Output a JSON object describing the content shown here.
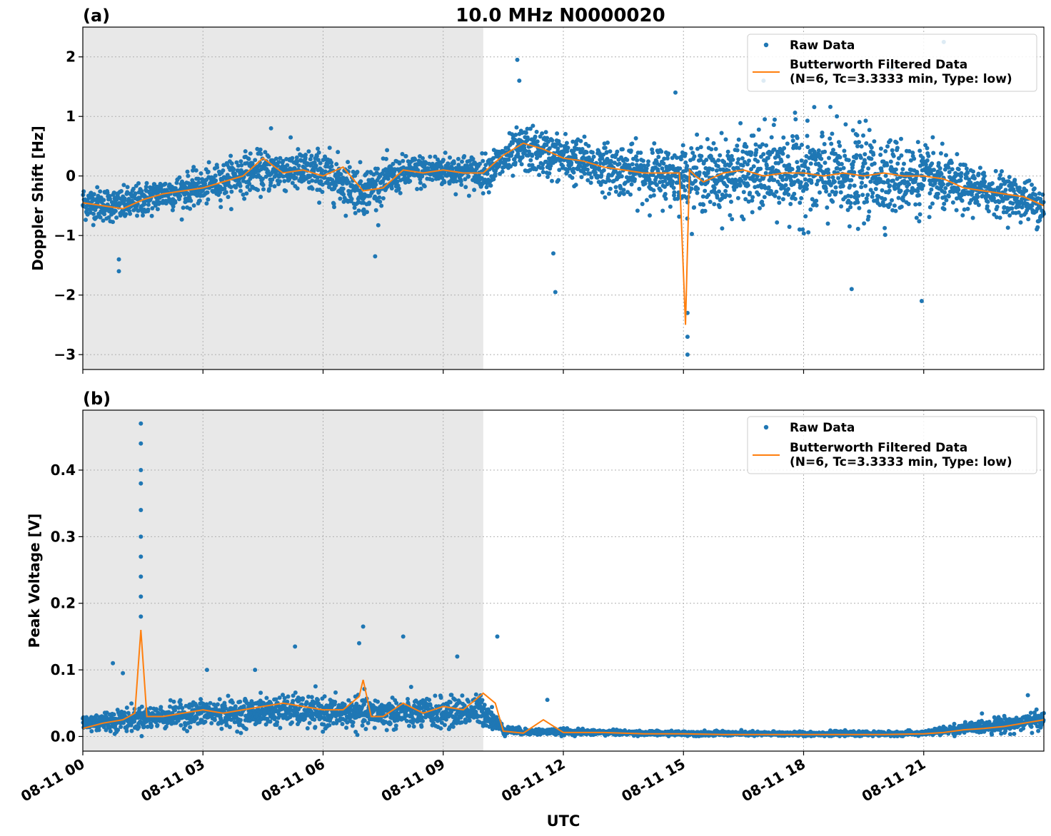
{
  "figure": {
    "title": "10.0 MHz N0000020",
    "xlabel": "UTC",
    "xticks": [
      "08-11 00",
      "08-11 03",
      "08-11 06",
      "08-11 09",
      "08-11 12",
      "08-11 15",
      "08-11 18",
      "08-11 21"
    ],
    "night_shade_hours": [
      0,
      10
    ],
    "colors": {
      "raw": "#1f77b4",
      "filtered": "#ff7f0e",
      "shade": "#e8e8e8",
      "grid": "#b0b0b0"
    }
  },
  "legend": {
    "raw_label": "Raw Data",
    "filtered_label_line1": "Butterworth Filtered Data",
    "filtered_label_line2": "(N=6, Tc=3.3333 min, Type: low)"
  },
  "chart_data": [
    {
      "type": "scatter",
      "panel": "(a)",
      "ylabel": "Doppler Shift [Hz]",
      "xlim_hours": [
        0,
        24
      ],
      "ylim": [
        -3.25,
        2.5
      ],
      "yticks": [
        2,
        1,
        0,
        -1,
        -2,
        -3
      ],
      "ytick_labels": [
        "2",
        "1",
        "0",
        "−1",
        "−2",
        "−3"
      ],
      "grid": true,
      "legend_position": "top-right",
      "series": [
        {
          "name": "Raw Data",
          "style": "points",
          "envelope": [
            {
              "x": 0.0,
              "center": -0.45,
              "spread": 0.25
            },
            {
              "x": 1.0,
              "center": -0.5,
              "spread": 0.25
            },
            {
              "x": 2.0,
              "center": -0.3,
              "spread": 0.25
            },
            {
              "x": 3.0,
              "center": -0.2,
              "spread": 0.25
            },
            {
              "x": 4.0,
              "center": 0.05,
              "spread": 0.3
            },
            {
              "x": 5.0,
              "center": 0.1,
              "spread": 0.3
            },
            {
              "x": 6.0,
              "center": 0.05,
              "spread": 0.35
            },
            {
              "x": 7.0,
              "center": -0.25,
              "spread": 0.35
            },
            {
              "x": 8.0,
              "center": 0.05,
              "spread": 0.25
            },
            {
              "x": 9.0,
              "center": 0.1,
              "spread": 0.25
            },
            {
              "x": 10.0,
              "center": 0.05,
              "spread": 0.25
            },
            {
              "x": 11.0,
              "center": 0.45,
              "spread": 0.35
            },
            {
              "x": 12.0,
              "center": 0.3,
              "spread": 0.35
            },
            {
              "x": 13.0,
              "center": 0.15,
              "spread": 0.35
            },
            {
              "x": 14.0,
              "center": 0.05,
              "spread": 0.4
            },
            {
              "x": 15.0,
              "center": 0.0,
              "spread": 0.45
            },
            {
              "x": 16.0,
              "center": 0.0,
              "spread": 0.55
            },
            {
              "x": 17.0,
              "center": 0.05,
              "spread": 0.6
            },
            {
              "x": 18.0,
              "center": 0.05,
              "spread": 0.7
            },
            {
              "x": 19.0,
              "center": 0.0,
              "spread": 0.7
            },
            {
              "x": 20.0,
              "center": 0.0,
              "spread": 0.6
            },
            {
              "x": 21.0,
              "center": -0.05,
              "spread": 0.5
            },
            {
              "x": 22.0,
              "center": -0.2,
              "spread": 0.35
            },
            {
              "x": 23.0,
              "center": -0.3,
              "spread": 0.3
            },
            {
              "x": 24.0,
              "center": -0.5,
              "spread": 0.3
            }
          ],
          "outliers": [
            {
              "x": 0.9,
              "y": -1.6
            },
            {
              "x": 0.9,
              "y": -1.4
            },
            {
              "x": 4.7,
              "y": 0.8
            },
            {
              "x": 7.3,
              "y": -1.35
            },
            {
              "x": 10.85,
              "y": 1.95
            },
            {
              "x": 10.9,
              "y": 1.6
            },
            {
              "x": 11.8,
              "y": -1.95
            },
            {
              "x": 11.75,
              "y": -1.3
            },
            {
              "x": 15.1,
              "y": -3.0
            },
            {
              "x": 15.1,
              "y": -2.7
            },
            {
              "x": 15.1,
              "y": -2.3
            },
            {
              "x": 19.2,
              "y": -1.9
            },
            {
              "x": 20.95,
              "y": -2.1
            },
            {
              "x": 21.5,
              "y": 2.25
            },
            {
              "x": 18.7,
              "y": 1.9
            },
            {
              "x": 14.8,
              "y": 1.4
            },
            {
              "x": 20.2,
              "y": 1.8
            },
            {
              "x": 17.0,
              "y": 1.6
            }
          ]
        },
        {
          "name": "Butterworth Filtered Data\n(N=6, Tc=3.3333 min, Type: low)",
          "style": "line",
          "x": [
            0,
            0.5,
            1.0,
            1.5,
            2.0,
            2.5,
            3.0,
            3.5,
            4.0,
            4.5,
            5.0,
            5.5,
            6.0,
            6.5,
            7.0,
            7.5,
            8.0,
            8.5,
            9.0,
            9.5,
            10.0,
            10.5,
            11.0,
            11.5,
            12.0,
            12.5,
            13.0,
            13.5,
            14.0,
            14.5,
            14.9,
            15.05,
            15.15,
            15.3,
            15.5,
            16.0,
            16.5,
            17.0,
            17.5,
            18.0,
            18.5,
            19.0,
            19.5,
            20.0,
            20.5,
            21.0,
            21.5,
            22.0,
            22.5,
            23.0,
            23.5,
            24.0
          ],
          "y": [
            -0.45,
            -0.5,
            -0.55,
            -0.4,
            -0.3,
            -0.25,
            -0.2,
            -0.1,
            0.0,
            0.3,
            0.05,
            0.1,
            0.0,
            0.15,
            -0.25,
            -0.2,
            0.1,
            0.05,
            0.1,
            0.05,
            0.05,
            0.35,
            0.55,
            0.45,
            0.3,
            0.25,
            0.15,
            0.1,
            0.05,
            0.05,
            0.05,
            -2.5,
            0.1,
            0.0,
            -0.1,
            0.05,
            0.1,
            0.0,
            0.05,
            0.05,
            0.0,
            0.05,
            0.0,
            0.05,
            0.0,
            0.0,
            -0.05,
            -0.2,
            -0.25,
            -0.3,
            -0.35,
            -0.5
          ]
        }
      ]
    },
    {
      "type": "scatter",
      "panel": "(b)",
      "ylabel": "Peak Voltage [V]",
      "xlim_hours": [
        0,
        24
      ],
      "ylim": [
        -0.022,
        0.49
      ],
      "yticks": [
        0.0,
        0.1,
        0.2,
        0.3,
        0.4
      ],
      "ytick_labels": [
        "0.0",
        "0.1",
        "0.2",
        "0.3",
        "0.4"
      ],
      "grid": true,
      "legend_position": "top-right",
      "series": [
        {
          "name": "Raw Data",
          "style": "points",
          "envelope": [
            {
              "x": 0.0,
              "center": 0.02,
              "spread": 0.012
            },
            {
              "x": 1.0,
              "center": 0.025,
              "spread": 0.015
            },
            {
              "x": 2.0,
              "center": 0.03,
              "spread": 0.015
            },
            {
              "x": 3.0,
              "center": 0.035,
              "spread": 0.018
            },
            {
              "x": 4.0,
              "center": 0.035,
              "spread": 0.018
            },
            {
              "x": 5.0,
              "center": 0.04,
              "spread": 0.02
            },
            {
              "x": 6.0,
              "center": 0.035,
              "spread": 0.02
            },
            {
              "x": 7.0,
              "center": 0.035,
              "spread": 0.02
            },
            {
              "x": 8.0,
              "center": 0.035,
              "spread": 0.02
            },
            {
              "x": 9.0,
              "center": 0.035,
              "spread": 0.02
            },
            {
              "x": 10.0,
              "center": 0.04,
              "spread": 0.02
            },
            {
              "x": 10.5,
              "center": 0.01,
              "spread": 0.006
            },
            {
              "x": 11.0,
              "center": 0.007,
              "spread": 0.004
            },
            {
              "x": 12.0,
              "center": 0.007,
              "spread": 0.004
            },
            {
              "x": 14.0,
              "center": 0.005,
              "spread": 0.003
            },
            {
              "x": 17.0,
              "center": 0.004,
              "spread": 0.003
            },
            {
              "x": 20.0,
              "center": 0.004,
              "spread": 0.003
            },
            {
              "x": 21.0,
              "center": 0.005,
              "spread": 0.003
            },
            {
              "x": 22.0,
              "center": 0.012,
              "spread": 0.007
            },
            {
              "x": 23.0,
              "center": 0.018,
              "spread": 0.01
            },
            {
              "x": 24.0,
              "center": 0.025,
              "spread": 0.012
            }
          ],
          "outliers": [
            {
              "x": 1.45,
              "y": 0.47
            },
            {
              "x": 1.45,
              "y": 0.44
            },
            {
              "x": 1.45,
              "y": 0.4
            },
            {
              "x": 1.45,
              "y": 0.38
            },
            {
              "x": 1.45,
              "y": 0.34
            },
            {
              "x": 1.45,
              "y": 0.3
            },
            {
              "x": 1.45,
              "y": 0.27
            },
            {
              "x": 1.45,
              "y": 0.24
            },
            {
              "x": 1.45,
              "y": 0.21
            },
            {
              "x": 1.45,
              "y": 0.18
            },
            {
              "x": 0.75,
              "y": 0.11
            },
            {
              "x": 1.0,
              "y": 0.095
            },
            {
              "x": 3.1,
              "y": 0.1
            },
            {
              "x": 4.3,
              "y": 0.1
            },
            {
              "x": 5.3,
              "y": 0.135
            },
            {
              "x": 6.9,
              "y": 0.14
            },
            {
              "x": 7.0,
              "y": 0.165
            },
            {
              "x": 8.0,
              "y": 0.15
            },
            {
              "x": 9.35,
              "y": 0.12
            },
            {
              "x": 10.35,
              "y": 0.15
            },
            {
              "x": 11.6,
              "y": 0.055
            },
            {
              "x": 23.6,
              "y": 0.062
            }
          ]
        },
        {
          "name": "Butterworth Filtered Data\n(N=6, Tc=3.3333 min, Type: low)",
          "style": "line",
          "x": [
            0,
            0.5,
            1.0,
            1.3,
            1.45,
            1.6,
            2.0,
            2.5,
            3.0,
            3.5,
            4.0,
            4.5,
            5.0,
            5.5,
            6.0,
            6.5,
            6.9,
            7.0,
            7.2,
            7.5,
            8.0,
            8.5,
            9.0,
            9.5,
            10.0,
            10.3,
            10.5,
            11.0,
            11.5,
            12.0,
            13.0,
            14.0,
            15.0,
            16.0,
            17.0,
            18.0,
            19.0,
            20.0,
            21.0,
            21.5,
            22.0,
            22.5,
            23.0,
            23.5,
            24.0
          ],
          "y": [
            0.012,
            0.02,
            0.025,
            0.035,
            0.16,
            0.03,
            0.03,
            0.035,
            0.04,
            0.035,
            0.04,
            0.045,
            0.05,
            0.045,
            0.04,
            0.04,
            0.06,
            0.085,
            0.03,
            0.03,
            0.05,
            0.035,
            0.045,
            0.04,
            0.065,
            0.05,
            0.008,
            0.005,
            0.025,
            0.006,
            0.006,
            0.004,
            0.004,
            0.003,
            0.003,
            0.003,
            0.003,
            0.003,
            0.004,
            0.006,
            0.01,
            0.012,
            0.015,
            0.02,
            0.025
          ]
        }
      ]
    }
  ]
}
